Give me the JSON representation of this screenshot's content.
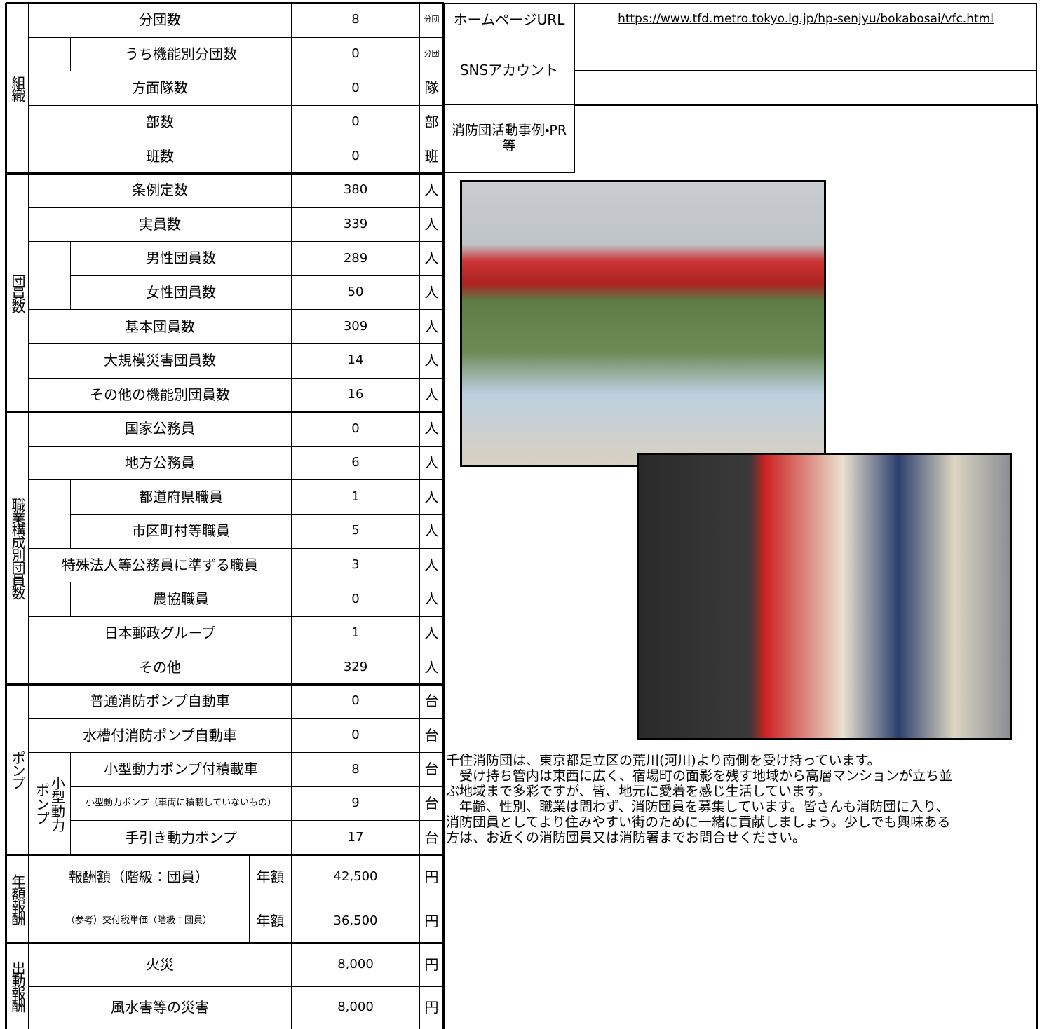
{
  "sections": [
    {
      "label": "組織",
      "rows": [
        {
          "item": "分団数",
          "value": "8",
          "unit": "分団"
        },
        {
          "item": "うち機能別分団数",
          "value": "0",
          "unit": "分団"
        },
        {
          "item": "方面隊数",
          "value": "0",
          "unit": "隊"
        },
        {
          "item": "部数",
          "value": "0",
          "unit": "部"
        },
        {
          "item": "班数",
          "value": "0",
          "unit": "班"
        }
      ]
    },
    {
      "label": "団員数",
      "rows": [
        {
          "item": "条例定数",
          "value": "380",
          "unit": "人"
        },
        {
          "item": "実員数",
          "value": "339",
          "unit": "人"
        },
        {
          "item": "男性団員数",
          "value": "289",
          "unit": "人"
        },
        {
          "item": "女性団員数",
          "value": "50",
          "unit": "人"
        },
        {
          "item": "基本団員数",
          "value": "309",
          "unit": "人"
        },
        {
          "item": "大規模災害団員数",
          "value": "14",
          "unit": "人"
        },
        {
          "item": "その他の機能別団員数",
          "value": "16",
          "unit": "人"
        }
      ]
    },
    {
      "label": "職業構成別団員数",
      "rows": [
        {
          "item": "国家公務員",
          "value": "0",
          "unit": "人"
        },
        {
          "item": "地方公務員",
          "value": "6",
          "unit": "人"
        },
        {
          "item": "都道府県職員",
          "value": "1",
          "unit": "人"
        },
        {
          "item": "市区町村等職員",
          "value": "5",
          "unit": "人"
        },
        {
          "item": "特殊法人等公務員に準ずる職員",
          "value": "3",
          "unit": "人"
        },
        {
          "item": "農協職員",
          "value": "0",
          "unit": "人"
        },
        {
          "item": "日本郵政グループ",
          "value": "1",
          "unit": "人"
        },
        {
          "item": "その他",
          "value": "329",
          "unit": "人"
        }
      ]
    },
    {
      "label": "ポンプ",
      "subgroup": "小型動力ポンプ",
      "rows": [
        {
          "item": "普通消防ポンプ自動車",
          "value": "0",
          "unit": "台"
        },
        {
          "item": "水槽付消防ポンプ自動車",
          "value": "0",
          "unit": "台"
        },
        {
          "item": "小型動力ポンプ付積載車",
          "value": "8",
          "unit": "台"
        },
        {
          "item": "小型動力ポンプ（車両に積載していないもの）",
          "value": "9",
          "unit": "台"
        },
        {
          "item": "手引き動力ポンプ",
          "value": "17",
          "unit": "台"
        }
      ]
    },
    {
      "label": "年額報酬",
      "rows": [
        {
          "item": "報酬額（階級：団員）",
          "period": "年額",
          "value": "42,500",
          "unit": "円"
        },
        {
          "item": "（参考）交付税単価（階級：団員）",
          "period": "年額",
          "value": "36,500",
          "unit": "円"
        }
      ]
    },
    {
      "label": "出動報酬",
      "rows": [
        {
          "item": "火災",
          "value": "8,000",
          "unit": "円"
        },
        {
          "item": "風水害等の災害",
          "value": "8,000",
          "unit": "円"
        }
      ]
    }
  ],
  "right": {
    "url_label": "ホームページURL",
    "url": "https://www.tfd.metro.tokyo.lg.jp/hp-senjyu/bokabosai/vfc.html",
    "sns_label": "SNSアカウント",
    "activity_label": "消防団活動事例・PR等",
    "description": [
      "千住消防団は、東京都足立区の荒川(河川)より南側を受け持っています。",
      "　受け持ち管内は東西に広く、宿場町の面影を残す地域から高層マンションが立ち並",
      "ぶ地域まで多彩ですが、皆、地元に愛着を感じ生活しています。",
      "　年齢、性別、職業は問わず、消防団員を募集しています。皆さんも消防団に入り、",
      "消防団員としてより住みやすい街のために一緒に貢献しましょう。少しでも興味ある",
      "方は、お近くの消防団員又は消防署までお問合せください。"
    ]
  }
}
